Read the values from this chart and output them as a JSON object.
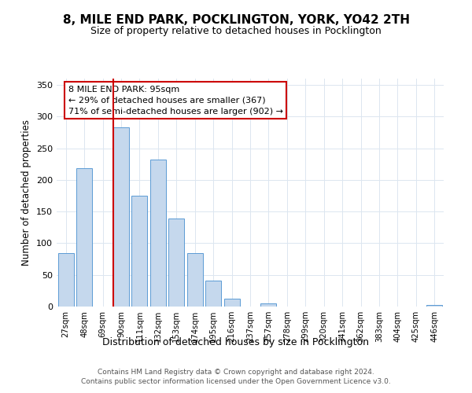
{
  "title": "8, MILE END PARK, POCKLINGTON, YORK, YO42 2TH",
  "subtitle": "Size of property relative to detached houses in Pocklington",
  "xlabel": "Distribution of detached houses by size in Pocklington",
  "ylabel": "Number of detached properties",
  "bar_labels": [
    "27sqm",
    "48sqm",
    "69sqm",
    "90sqm",
    "111sqm",
    "132sqm",
    "153sqm",
    "174sqm",
    "195sqm",
    "216sqm",
    "237sqm",
    "257sqm",
    "278sqm",
    "299sqm",
    "320sqm",
    "341sqm",
    "362sqm",
    "383sqm",
    "404sqm",
    "425sqm",
    "446sqm"
  ],
  "bar_values": [
    85,
    218,
    0,
    283,
    175,
    232,
    139,
    85,
    41,
    12,
    0,
    5,
    0,
    0,
    0,
    0,
    0,
    0,
    0,
    0,
    3
  ],
  "bar_color": "#c5d8ed",
  "bar_edge_color": "#5b9bd5",
  "vline_color": "#cc0000",
  "vline_x_index": 3,
  "annotation_line1": "8 MILE END PARK: 95sqm",
  "annotation_line2": "← 29% of detached houses are smaller (367)",
  "annotation_line3": "71% of semi-detached houses are larger (902) →",
  "annotation_box_color": "#ffffff",
  "annotation_box_edge_color": "#cc0000",
  "ylim": [
    0,
    360
  ],
  "yticks": [
    0,
    50,
    100,
    150,
    200,
    250,
    300,
    350
  ],
  "footer_line1": "Contains HM Land Registry data © Crown copyright and database right 2024.",
  "footer_line2": "Contains public sector information licensed under the Open Government Licence v3.0.",
  "background_color": "#ffffff",
  "grid_color": "#dce6f0"
}
